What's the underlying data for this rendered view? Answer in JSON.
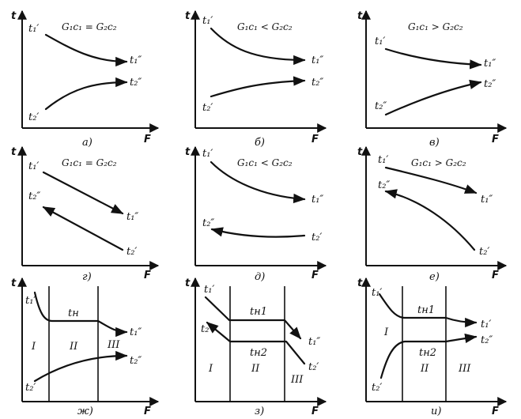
{
  "axis": {
    "y": "t",
    "x": "F"
  },
  "panels": [
    {
      "caption": "а)",
      "title": "G₁c₁ = G₂c₂",
      "labels": [
        "t₁′",
        "t₁″",
        "t₂′",
        "t₂″"
      ]
    },
    {
      "caption": "б)",
      "title": "G₁c₁ < G₂c₂",
      "labels": [
        "t₁′",
        "t₁″",
        "t₂′",
        "t₂″"
      ]
    },
    {
      "caption": "в)",
      "title": "G₁c₁ > G₂c₂",
      "labels": [
        "t₁′",
        "t₁″",
        "t₂″",
        "t₂″"
      ]
    },
    {
      "caption": "г)",
      "title": "G₁c₁ = G₂c₂",
      "labels": [
        "t₁′",
        "t₂″",
        "t₁″",
        "t₂′"
      ]
    },
    {
      "caption": "д)",
      "title": "G₁c₁ < G₂c₂",
      "labels": [
        "t₁′",
        "t₁″",
        "t₂″",
        "t₂′"
      ]
    },
    {
      "caption": "е)",
      "title": "G₁c₁ > G₂c₂",
      "labels": [
        "t₁′",
        "t₂″",
        "t₁″",
        "t₂′"
      ]
    },
    {
      "caption": "ж)",
      "labels": [
        "t₁′",
        "tн",
        "t₁″",
        "t₂′",
        "t₂″"
      ],
      "zones": [
        "I",
        "II",
        "III"
      ]
    },
    {
      "caption": "з)",
      "labels": [
        "t₁′",
        "t₂″",
        "tн1",
        "tн2",
        "t₁″",
        "t₂′"
      ],
      "zones": [
        "I",
        "II",
        "III"
      ]
    },
    {
      "caption": "и)",
      "labels": [
        "t₁′",
        "tн1",
        "tн2",
        "t₁′",
        "t₂″",
        "t₂′"
      ],
      "zones": [
        "I",
        "II",
        "III"
      ]
    }
  ]
}
